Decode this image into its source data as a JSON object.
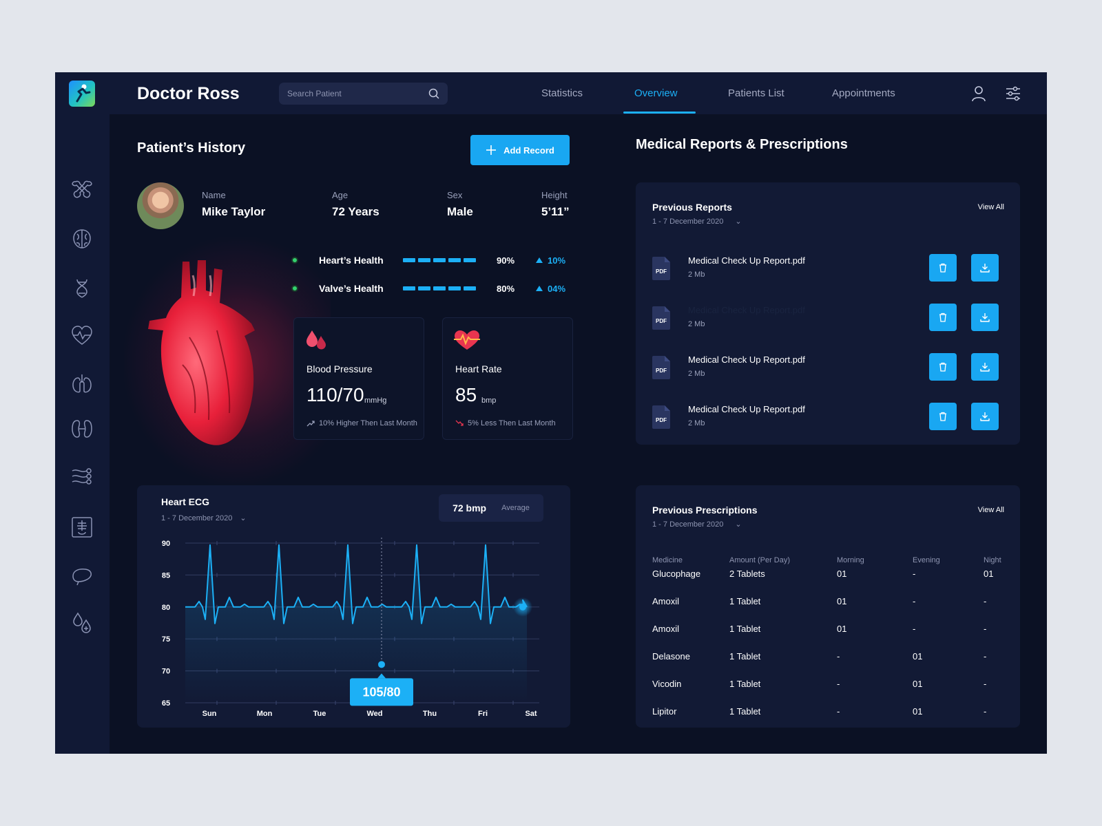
{
  "header": {
    "doctor_name": "Doctor Ross",
    "search_placeholder": "Search Patient",
    "tabs": [
      {
        "label": "Statistics",
        "active": false
      },
      {
        "label": "Overview",
        "active": true
      },
      {
        "label": "Patients List",
        "active": false
      },
      {
        "label": "Appointments",
        "active": false
      }
    ]
  },
  "sidebar": {
    "icons": [
      "bone-icon",
      "brain-icon",
      "dna-icon",
      "heart-pulse-icon",
      "lungs-icon",
      "kidneys-icon",
      "nerves-icon",
      "xray-icon",
      "liver-icon",
      "blood-drops-icon"
    ]
  },
  "patient_history": {
    "title": "Patient’s History",
    "add_record_label": "Add Record",
    "patient": {
      "name_label": "Name",
      "name": "Mike Taylor",
      "age_label": "Age",
      "age": "72 Years",
      "sex_label": "Sex",
      "sex": "Male",
      "height_label": "Height",
      "height": "5’11”"
    },
    "health": [
      {
        "label": "Heart’s Health",
        "percent": "90%",
        "change": "10%",
        "level": 0.9
      },
      {
        "label": "Valve’s Health",
        "percent": "80%",
        "change": "04%",
        "level": 0.8
      }
    ],
    "blood_pressure": {
      "title": "Blood Pressure",
      "value": "110/70",
      "unit": "mmHg",
      "note": "10% Higher Then Last Month"
    },
    "heart_rate": {
      "title": "Heart Rate",
      "value": "85",
      "unit": "bmp",
      "note": "5% Less Then Last Month"
    }
  },
  "ecg": {
    "title": "Heart ECG",
    "date_range": "1 - 7 December 2020",
    "avg_value": "72 bmp",
    "avg_label": "Average",
    "tooltip": "105/80",
    "chart_data": {
      "type": "line",
      "x": [
        "Sun",
        "Mon",
        "Tue",
        "Wed",
        "Thu",
        "Fri",
        "Sat"
      ],
      "ylim": [
        65,
        90
      ],
      "yticks": [
        90,
        85,
        80,
        75,
        70,
        65
      ],
      "grid": true,
      "highlight_day": "Wed",
      "highlight_point": 71
    }
  },
  "reports": {
    "title": "Medical Reports & Prescriptions",
    "panel_title": "Previous Reports",
    "date_range": "1 - 7 December 2020",
    "view_all": "View All",
    "items": [
      {
        "name": "Medical Check Up Report.pdf",
        "size": "2 Mb",
        "type": "PDF"
      },
      {
        "name": "Medical Check Up Report.pdf",
        "size": "2 Mb",
        "type": "PDF"
      },
      {
        "name": "Medical Check Up Report.pdf",
        "size": "2 Mb",
        "type": "PDF"
      },
      {
        "name": "Medical Check Up Report.pdf",
        "size": "2 Mb",
        "type": "PDF"
      }
    ]
  },
  "prescriptions": {
    "panel_title": "Previous Prescriptions",
    "date_range": "1 - 7 December 2020",
    "view_all": "View All",
    "columns": [
      "Medicine",
      "Amount (Per Day)",
      "Morning",
      "Evening",
      "Night"
    ],
    "rows": [
      [
        "Glucophage",
        "2 Tablets",
        "01",
        "-",
        "01"
      ],
      [
        "Amoxil",
        "1 Tablet",
        "01",
        "-",
        "-"
      ],
      [
        "Amoxil",
        "1 Tablet",
        "01",
        "-",
        "-"
      ],
      [
        "Delasone",
        "1 Tablet",
        "-",
        "01",
        "-"
      ],
      [
        "Vicodin",
        "1 Tablet",
        "-",
        "01",
        "-"
      ],
      [
        "Lipitor",
        "1 Tablet",
        "-",
        "01",
        "-"
      ]
    ]
  },
  "colors": {
    "accent": "#1cb0f6",
    "background": "#0b1124",
    "panel": "#121a35",
    "good": "#33d16e",
    "alert": "#e8354f"
  }
}
